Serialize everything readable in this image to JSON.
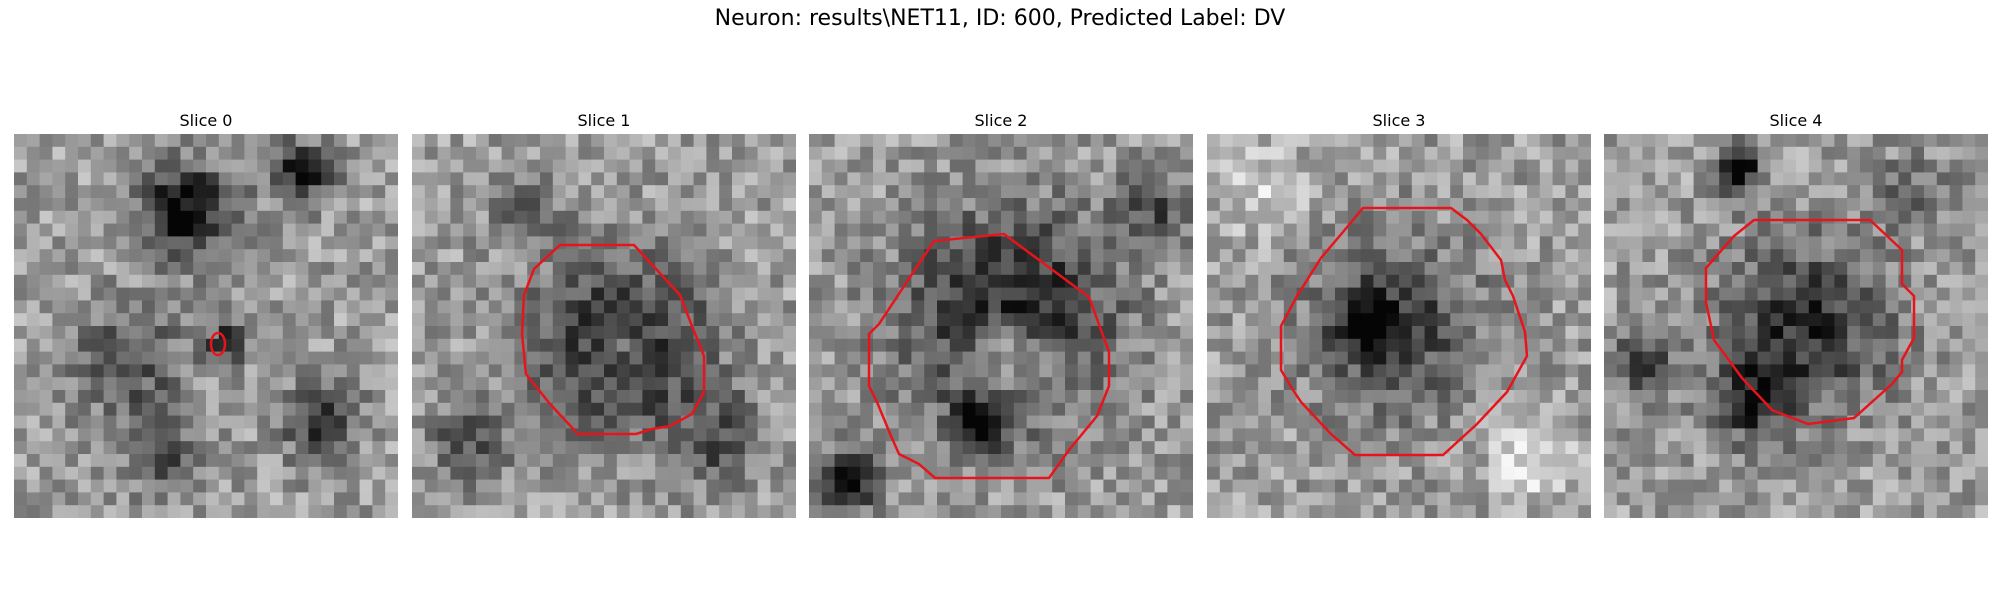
{
  "figure": {
    "title": "Neuron: results\\NET11, ID: 600, Predicted Label: DV"
  },
  "panels": [
    {
      "label": "Slice 0"
    },
    {
      "label": "Slice 1"
    },
    {
      "label": "Slice 2"
    },
    {
      "label": "Slice 3"
    },
    {
      "label": "Slice 4"
    }
  ],
  "style": {
    "contour_color": "#e8141b"
  }
}
